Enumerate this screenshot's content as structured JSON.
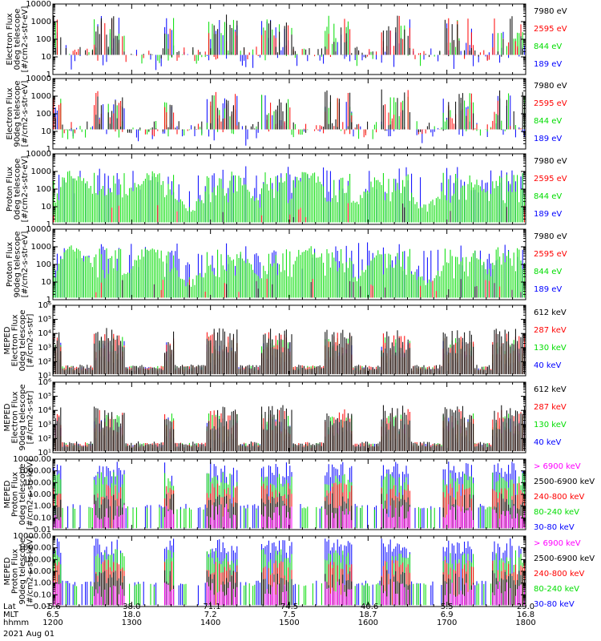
{
  "colors": {
    "black": "#000000",
    "red": "#ff0000",
    "green": "#00dd00",
    "blue": "#0000ff",
    "magenta": "#ff00ff"
  },
  "x_axis": {
    "rows": [
      {
        "label": "Lat",
        "values": [
          "-5.6",
          "38.0",
          "-71.1",
          "74.5",
          "-40.6",
          "5.5",
          "29.0"
        ]
      },
      {
        "label": "MLT",
        "values": [
          "6.5",
          "18.0",
          "7.2",
          "7.5",
          "18.7",
          "6.9",
          "16.8"
        ]
      },
      {
        "label": "hhmm",
        "values": [
          "1200",
          "1300",
          "1400",
          "1500",
          "1600",
          "1700",
          "1800"
        ]
      }
    ],
    "date": "2021 Aug 01",
    "time_range_hours": [
      12,
      18
    ]
  },
  "chart_data": [
    {
      "type": "line",
      "ylabel": [
        "Electron Flux",
        "0deg telescope",
        "[#/cm2-s-str-eV]"
      ],
      "yscale": "log",
      "ylim": [
        1,
        10000
      ],
      "ytick_labels": [
        "1",
        "10",
        "100",
        "1000",
        "10000"
      ],
      "series": [
        {
          "name": "7980 eV",
          "color": "#000000"
        },
        {
          "name": "2595 eV",
          "color": "#ff0000"
        },
        {
          "name": "844 eV",
          "color": "#00dd00"
        },
        {
          "name": "189 eV",
          "color": "#0000ff"
        }
      ]
    },
    {
      "type": "line",
      "ylabel": [
        "Electron Flux",
        "90deg telescope",
        "[#/cm2-s-str-eV]"
      ],
      "yscale": "log",
      "ylim": [
        1,
        10000
      ],
      "ytick_labels": [
        "1",
        "10",
        "100",
        "1000",
        "10000"
      ],
      "series": [
        {
          "name": "7980 eV",
          "color": "#000000"
        },
        {
          "name": "2595 eV",
          "color": "#ff0000"
        },
        {
          "name": "844 eV",
          "color": "#00dd00"
        },
        {
          "name": "189 eV",
          "color": "#0000ff"
        }
      ]
    },
    {
      "type": "line",
      "ylabel": [
        "Proton Flux",
        "0deg telescope",
        "[#/cm2-s-str-eV]"
      ],
      "yscale": "log",
      "ylim": [
        1,
        10000
      ],
      "ytick_labels": [
        "1",
        "10",
        "100",
        "1000",
        "10000"
      ],
      "series": [
        {
          "name": "7980 eV",
          "color": "#000000"
        },
        {
          "name": "2595 eV",
          "color": "#ff0000"
        },
        {
          "name": "844 eV",
          "color": "#00dd00"
        },
        {
          "name": "189 eV",
          "color": "#0000ff"
        }
      ]
    },
    {
      "type": "line",
      "ylabel": [
        "Proton Flux",
        "90deg telescope",
        "[#/cm2-s-str-eV]"
      ],
      "yscale": "log",
      "ylim": [
        1,
        10000
      ],
      "ytick_labels": [
        "1",
        "10",
        "100",
        "1000",
        "10000"
      ],
      "series": [
        {
          "name": "7980 eV",
          "color": "#000000"
        },
        {
          "name": "2595 eV",
          "color": "#ff0000"
        },
        {
          "name": "844 eV",
          "color": "#00dd00"
        },
        {
          "name": "189 eV",
          "color": "#0000ff"
        }
      ]
    },
    {
      "type": "line",
      "ylabel": [
        "MEPED",
        "Electron Flux",
        "0deg telescope",
        "[#/cm2-s-str]"
      ],
      "yscale": "log",
      "ylim": [
        10,
        1000000
      ],
      "ytick_labels": [
        "10¹",
        "10²",
        "10³",
        "10⁴",
        "10⁵",
        "10⁶"
      ],
      "series": [
        {
          "name": "612 keV",
          "color": "#000000"
        },
        {
          "name": "287 keV",
          "color": "#ff0000"
        },
        {
          "name": "130 keV",
          "color": "#00dd00"
        },
        {
          "name": "40 keV",
          "color": "#0000ff"
        }
      ]
    },
    {
      "type": "line",
      "ylabel": [
        "MEPED",
        "Electron Flux",
        "90deg telescope",
        "[#/cm2-s-str]"
      ],
      "yscale": "log",
      "ylim": [
        10,
        1000000
      ],
      "ytick_labels": [
        "10¹",
        "10²",
        "10³",
        "10⁴",
        "10⁵",
        "10⁶"
      ],
      "series": [
        {
          "name": "612 keV",
          "color": "#000000"
        },
        {
          "name": "287 keV",
          "color": "#ff0000"
        },
        {
          "name": "130 keV",
          "color": "#00dd00"
        },
        {
          "name": "40 keV",
          "color": "#0000ff"
        }
      ]
    },
    {
      "type": "line",
      "ylabel": [
        "MEPED",
        "Proton Flux",
        "0deg telescope",
        "[#/cm2-s-str-keV]"
      ],
      "yscale": "log",
      "ylim": [
        0.01,
        10000
      ],
      "ytick_labels": [
        "0.01",
        "0.10",
        "1.00",
        "10.00",
        "100.00",
        "1000.00",
        "10000.00"
      ],
      "series": [
        {
          "name": "> 6900 keV",
          "color": "#ff00ff"
        },
        {
          "name": "2500-6900 keV",
          "color": "#000000"
        },
        {
          "name": "240-800 keV",
          "color": "#ff0000"
        },
        {
          "name": "80-240 keV",
          "color": "#00dd00"
        },
        {
          "name": "30-80 keV",
          "color": "#0000ff"
        }
      ]
    },
    {
      "type": "line",
      "ylabel": [
        "MEPED",
        "Proton Flux",
        "90deg telescope",
        "[#/cm2-s-str-keV]"
      ],
      "yscale": "log",
      "ylim": [
        0.01,
        10000
      ],
      "ytick_labels": [
        "0.01",
        "0.10",
        "1.00",
        "10.00",
        "100.00",
        "1000.00",
        "10000.00"
      ],
      "series": [
        {
          "name": "> 6900 keV",
          "color": "#ff00ff"
        },
        {
          "name": "2500-6900 keV",
          "color": "#000000"
        },
        {
          "name": "240-800 keV",
          "color": "#ff0000"
        },
        {
          "name": "80-240 keV",
          "color": "#00dd00"
        },
        {
          "name": "30-80 keV",
          "color": "#0000ff"
        }
      ]
    }
  ]
}
